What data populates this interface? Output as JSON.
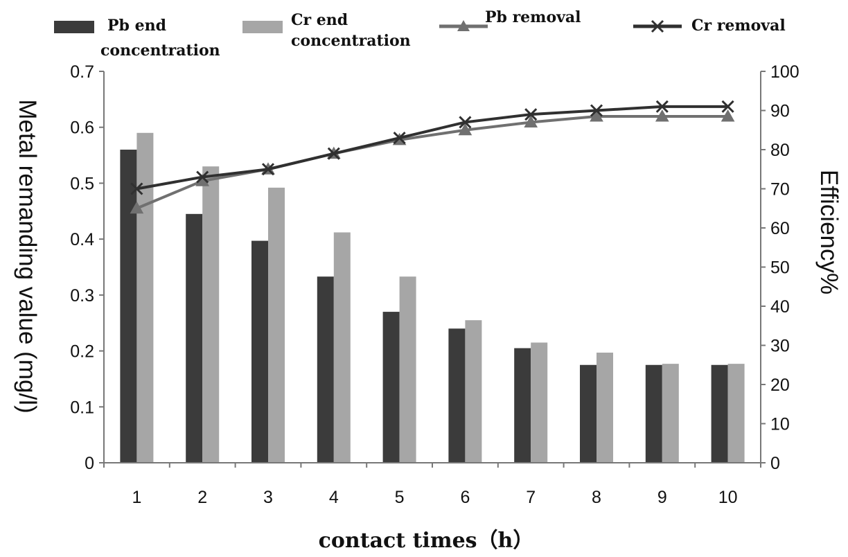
{
  "chart_data": {
    "type": "bar",
    "title": "",
    "xlabel": "contact times（h）",
    "ylabel": "Metal remanding value (mg/l)",
    "y2label": "Efficiency%",
    "categories": [
      "1",
      "2",
      "3",
      "4",
      "5",
      "6",
      "7",
      "8",
      "9",
      "10"
    ],
    "ylim": [
      0,
      0.7
    ],
    "y2lim": [
      0,
      100
    ],
    "yticks": [
      "0",
      "0.1",
      "0.2",
      "0.3",
      "0.4",
      "0.5",
      "0.6",
      "0.7"
    ],
    "y2ticks": [
      "0",
      "10",
      "20",
      "30",
      "40",
      "50",
      "60",
      "70",
      "80",
      "90",
      "100"
    ],
    "grid": false,
    "legend_position": "top",
    "series": [
      {
        "name": "Pb end concentration",
        "type": "bar",
        "axis": "left",
        "color": "#3b3b3b",
        "values": [
          0.56,
          0.445,
          0.397,
          0.333,
          0.27,
          0.24,
          0.205,
          0.175,
          0.175,
          0.175
        ]
      },
      {
        "name": "Cr end concentration",
        "type": "bar",
        "axis": "left",
        "color": "#a6a6a6",
        "values": [
          0.59,
          0.53,
          0.492,
          0.412,
          0.333,
          0.255,
          0.215,
          0.197,
          0.177,
          0.177
        ]
      },
      {
        "name": "Pb removal",
        "type": "line",
        "axis": "right",
        "marker": "triangle",
        "color": "#707070",
        "values": [
          65,
          72,
          75,
          79,
          82.5,
          85,
          87,
          88.5,
          88.5,
          88.5
        ]
      },
      {
        "name": "Cr removal",
        "type": "line",
        "axis": "right",
        "marker": "x",
        "color": "#303030",
        "values": [
          70,
          73,
          75,
          79,
          83,
          87,
          89,
          90,
          91,
          91
        ]
      }
    ]
  }
}
